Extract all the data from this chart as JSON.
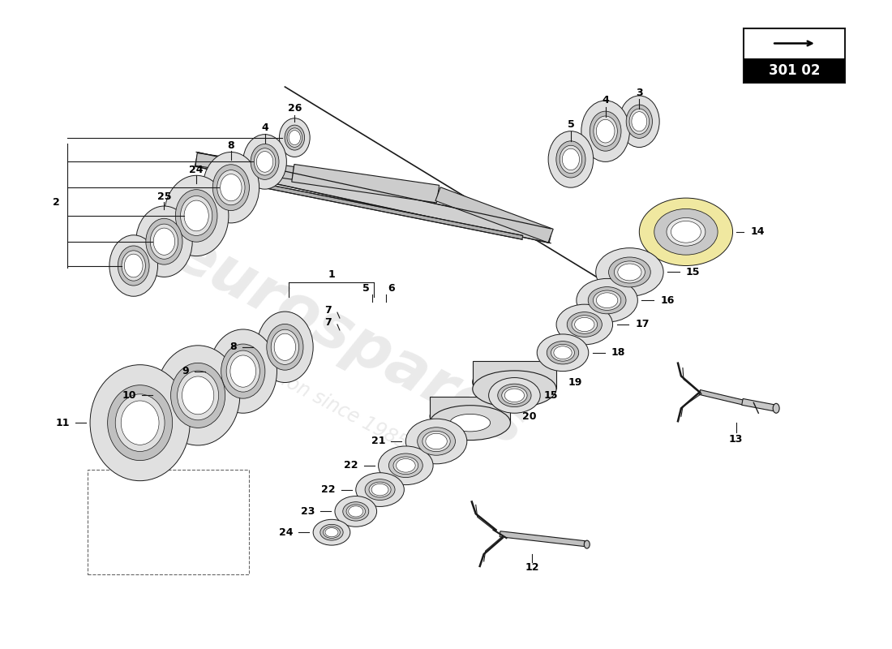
{
  "bg_color": "#ffffff",
  "line_color": "#1a1a1a",
  "diagram_label": "301 02",
  "watermark_text": "eurospares",
  "watermark_sub": "a passion since 1985",
  "shaft_color": "#c8c8c8",
  "ring_outer": "#e0e0e0",
  "ring_mid": "#c0c0c0",
  "ring_inner": "#d8d8d8",
  "ring_hole": "#f5f5f5",
  "yellow_fill": "#f0e8a0",
  "label_fs": 9,
  "lw": 0.8
}
